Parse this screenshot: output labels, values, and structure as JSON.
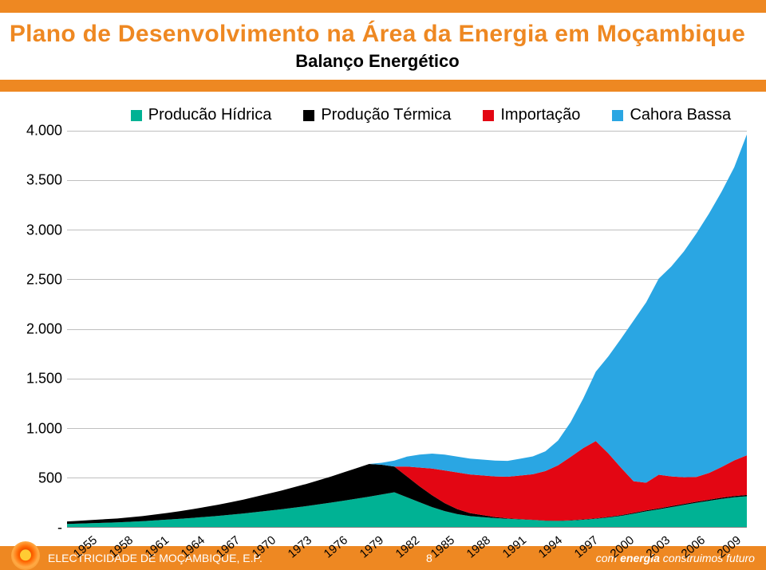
{
  "header": {
    "title": "Plano de Desenvolvimento na Área da Energia em Moçambique",
    "subtitle": "Balanço Energético",
    "title_color": "#ee8822",
    "subtitle_color": "#000000",
    "band_color": "#ee8822",
    "title_fontsize": 30,
    "subtitle_fontsize": 22
  },
  "chart": {
    "type": "area",
    "background_color": "#ffffff",
    "grid_color": "#bfbfbf",
    "ylim": [
      0,
      4000
    ],
    "ytick_step": 500,
    "y_ticks": [
      {
        "v": 0,
        "label": "-"
      },
      {
        "v": 500,
        "label": "500"
      },
      {
        "v": 1000,
        "label": "1.000"
      },
      {
        "v": 1500,
        "label": "1.500"
      },
      {
        "v": 2000,
        "label": "2.000"
      },
      {
        "v": 2500,
        "label": "2.500"
      },
      {
        "v": 3000,
        "label": "3.000"
      },
      {
        "v": 3500,
        "label": "3.500"
      },
      {
        "v": 4000,
        "label": "4.000"
      }
    ],
    "x_labels": [
      "1955",
      "1958",
      "1961",
      "1964",
      "1967",
      "1970",
      "1973",
      "1976",
      "1979",
      "1982",
      "1985",
      "1988",
      "1991",
      "1994",
      "1997",
      "2000",
      "2003",
      "2006",
      "2009"
    ],
    "years": [
      1955,
      1956,
      1957,
      1958,
      1959,
      1960,
      1961,
      1962,
      1963,
      1964,
      1965,
      1966,
      1967,
      1968,
      1969,
      1970,
      1971,
      1972,
      1973,
      1974,
      1975,
      1976,
      1977,
      1978,
      1979,
      1980,
      1981,
      1982,
      1983,
      1984,
      1985,
      1986,
      1987,
      1988,
      1989,
      1990,
      1991,
      1992,
      1993,
      1994,
      1995,
      1996,
      1997,
      1998,
      1999,
      2000,
      2001,
      2002,
      2003,
      2004,
      2005,
      2006,
      2007,
      2008,
      2009
    ],
    "series": [
      {
        "name": "Producão Hídrica",
        "color": "#00b294",
        "values": [
          30,
          34,
          38,
          42,
          46,
          52,
          58,
          66,
          74,
          82,
          92,
          102,
          112,
          124,
          136,
          150,
          164,
          178,
          194,
          210,
          228,
          246,
          266,
          286,
          306,
          328,
          350,
          300,
          250,
          200,
          160,
          130,
          110,
          100,
          90,
          82,
          76,
          70,
          62,
          60,
          64,
          72,
          82,
          96,
          112,
          134,
          158,
          178,
          200,
          222,
          244,
          264,
          284,
          300,
          310
        ]
      },
      {
        "name": "Produção Térmica",
        "color": "#000000",
        "values": [
          25,
          28,
          32,
          36,
          40,
          46,
          52,
          60,
          68,
          78,
          88,
          100,
          112,
          126,
          140,
          156,
          172,
          188,
          206,
          224,
          244,
          264,
          286,
          308,
          330,
          300,
          260,
          210,
          160,
          120,
          80,
          50,
          30,
          20,
          10,
          5,
          3,
          2,
          2,
          2,
          3,
          4,
          5,
          6,
          7,
          8,
          9,
          9,
          10,
          10,
          11,
          11,
          12,
          12,
          13
        ]
      },
      {
        "name": "Importação",
        "color": "#e30613",
        "values": [
          0,
          0,
          0,
          0,
          0,
          0,
          0,
          0,
          0,
          0,
          0,
          0,
          0,
          0,
          0,
          0,
          0,
          0,
          0,
          0,
          0,
          0,
          0,
          0,
          0,
          0,
          0,
          100,
          190,
          270,
          330,
          370,
          390,
          400,
          410,
          420,
          440,
          460,
          500,
          560,
          640,
          720,
          780,
          640,
          480,
          320,
          280,
          340,
          300,
          270,
          250,
          270,
          310,
          360,
          400
        ]
      },
      {
        "name": "Cahora Bassa",
        "color": "#2aa6e3",
        "values": [
          0,
          0,
          0,
          0,
          0,
          0,
          0,
          0,
          0,
          0,
          0,
          0,
          0,
          0,
          0,
          0,
          0,
          0,
          0,
          0,
          0,
          0,
          0,
          0,
          0,
          20,
          60,
          100,
          130,
          150,
          160,
          160,
          160,
          160,
          160,
          160,
          170,
          180,
          200,
          250,
          350,
          500,
          700,
          980,
          1300,
          1620,
          1820,
          1980,
          2120,
          2280,
          2460,
          2620,
          2780,
          2960,
          3240
        ]
      }
    ],
    "legend_fontsize": 20,
    "tick_fontsize": 18,
    "x_tick_fontsize": 15
  },
  "footer": {
    "left": "ELECTRICIDADE DE MOÇAMBIQUE, E.P.",
    "page_number": "8",
    "right_prefix": "com ",
    "right_bold": "energia",
    "right_suffix": " construimos futuro",
    "band_color": "#ee8822",
    "text_color": "#ffffff"
  }
}
